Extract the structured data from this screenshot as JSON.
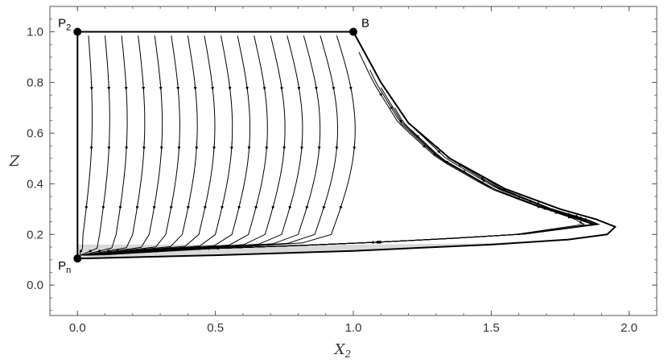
{
  "chart_data": {
    "type": "streamplot",
    "xlabel": "X",
    "xlabel_sub": "2",
    "ylabel": "Z",
    "xlim": [
      -0.1,
      2.1
    ],
    "ylim": [
      -0.12,
      1.1
    ],
    "x_ticks": [
      0.0,
      0.5,
      1.0,
      1.5,
      2.0
    ],
    "x_tick_labels": [
      "0.0",
      "0.5",
      "1.0",
      "1.5",
      "2.0"
    ],
    "y_ticks": [
      0.0,
      0.2,
      0.4,
      0.6,
      0.8,
      1.0
    ],
    "y_tick_labels": [
      "0.0",
      "0.2",
      "0.4",
      "0.6",
      "0.8",
      "1.0"
    ],
    "points": [
      {
        "id": "P2",
        "label": "P",
        "sub": "2",
        "x": 0.0,
        "y": 1.0
      },
      {
        "id": "B",
        "label": "B",
        "sub": "",
        "x": 1.0,
        "y": 1.0
      },
      {
        "id": "Pn",
        "label": "P",
        "sub": "n",
        "x": 0.0,
        "y": 0.105
      }
    ],
    "boundary": [
      [
        0.0,
        1.0
      ],
      [
        1.0,
        1.0
      ],
      [
        1.1,
        0.8
      ],
      [
        1.2,
        0.64
      ],
      [
        1.35,
        0.5
      ],
      [
        1.55,
        0.38
      ],
      [
        1.75,
        0.3
      ],
      [
        1.88,
        0.26
      ],
      [
        1.95,
        0.23
      ],
      [
        1.92,
        0.2
      ],
      [
        1.78,
        0.18
      ],
      [
        1.5,
        0.16
      ],
      [
        1.0,
        0.135
      ],
      [
        0.5,
        0.118
      ],
      [
        0.0,
        0.105
      ],
      [
        0.0,
        1.0
      ]
    ],
    "shaded_band": {
      "y_low": 0.105,
      "y_high": 0.16,
      "x_max": 1.95
    },
    "streamline_starts_x": [
      0.04,
      0.1,
      0.16,
      0.22,
      0.28,
      0.34,
      0.4,
      0.46,
      0.52,
      0.58,
      0.64,
      0.7,
      0.76,
      0.82,
      0.88,
      0.94
    ],
    "inner_streamline_starts": [
      [
        1.02,
        0.92
      ],
      [
        1.06,
        0.85
      ],
      [
        1.1,
        0.78
      ],
      [
        1.15,
        0.7
      ],
      [
        1.22,
        0.62
      ],
      [
        1.3,
        0.55
      ],
      [
        1.38,
        0.48
      ],
      [
        1.48,
        0.42
      ],
      [
        1.58,
        0.36
      ],
      [
        1.7,
        0.3
      ]
    ]
  }
}
